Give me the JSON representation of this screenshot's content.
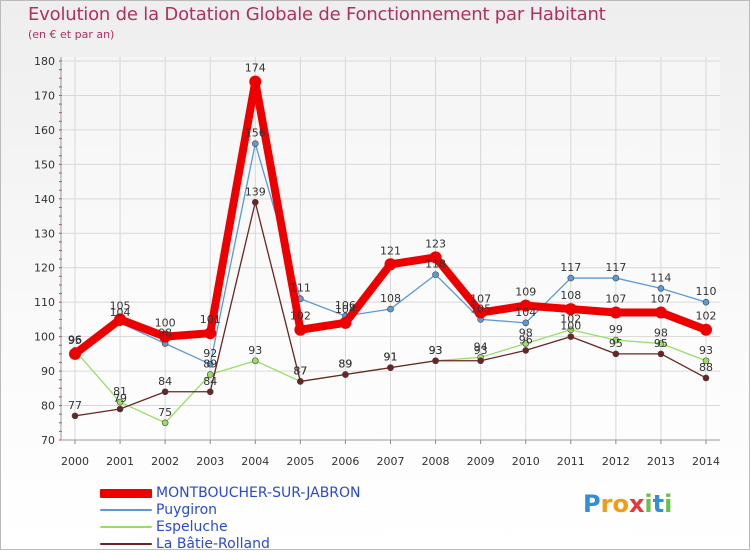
{
  "title": "Evolution de la Dotation Globale de Fonctionnement par Habitant",
  "subtitle": "(en € et par an)",
  "logo": {
    "letters": [
      {
        "ch": "P",
        "color": "#2f8fd8"
      },
      {
        "ch": "r",
        "color": "#f39c12"
      },
      {
        "ch": "o",
        "color": "#f39c12"
      },
      {
        "ch": "x",
        "color": "#e23a3a"
      },
      {
        "ch": "i",
        "color": "#6cc04a"
      },
      {
        "ch": "t",
        "color": "#2f8fd8"
      },
      {
        "ch": "i",
        "color": "#6cc04a"
      }
    ]
  },
  "chart_data": {
    "type": "line",
    "title": "Evolution de la Dotation Globale de Fonctionnement par Habitant",
    "subtitle": "(en € et par an)",
    "xlabel": "",
    "ylabel": "",
    "x": [
      "2000",
      "2001",
      "2002",
      "2003",
      "2004",
      "2005",
      "2006",
      "2007",
      "2008",
      "2009",
      "2010",
      "2011",
      "2012",
      "2013",
      "2014"
    ],
    "ylim": [
      70,
      180
    ],
    "yticks": [
      70,
      80,
      90,
      100,
      110,
      120,
      130,
      140,
      150,
      160,
      170,
      180
    ],
    "grid": true,
    "legend_position": "bottom-left",
    "series": [
      {
        "name": "MONTBOUCHER-SUR-JABRON",
        "color": "#ee0000",
        "legend_text_color": "#2a4ad6",
        "width": 8,
        "marker": 6,
        "values": [
          95,
          105,
          100,
          101,
          174,
          102,
          104,
          121,
          123,
          107,
          109,
          108,
          107,
          107,
          102
        ],
        "labels": [
          "95",
          "105",
          "100",
          "101",
          "174",
          "102",
          "104",
          "121",
          "123",
          "107",
          "109",
          "108",
          "107",
          "107",
          "102"
        ]
      },
      {
        "name": "Puygiron",
        "color": "#5b9bd5",
        "legend_text_color": "#2a4ad6",
        "width": 1.3,
        "marker": 3,
        "values": [
          96,
          104,
          98,
          92,
          156,
          111,
          106,
          108,
          118,
          105,
          104,
          117,
          117,
          114,
          110
        ],
        "labels": [
          "96",
          "104",
          "98",
          "92",
          "156",
          "111",
          "106",
          "108",
          "118",
          "105",
          "104",
          "117",
          "117",
          "114",
          "110"
        ]
      },
      {
        "name": "Espeluche",
        "color": "#99dd66",
        "legend_text_color": "#2a4ad6",
        "width": 1.3,
        "marker": 3,
        "values": [
          96,
          81,
          75,
          89,
          93,
          87,
          89,
          91,
          93,
          94,
          98,
          102,
          99,
          98,
          93
        ],
        "labels": [
          "96",
          "81",
          "75",
          "89",
          "93",
          "87",
          "89",
          "91",
          "93",
          "94",
          "98",
          "102",
          "99",
          "98",
          "93"
        ]
      },
      {
        "name": "La Bâtie-Rolland",
        "color": "#6b2323",
        "legend_text_color": "#2a4ad6",
        "width": 1.3,
        "marker": 3,
        "values": [
          77,
          79,
          84,
          84,
          139,
          87,
          89,
          91,
          93,
          93,
          96,
          100,
          95,
          95,
          88
        ],
        "labels": [
          "77",
          "79",
          "84",
          "84",
          "139",
          "87",
          "89",
          "91",
          "93",
          "93",
          "96",
          "100",
          "95",
          "95",
          "88"
        ]
      }
    ]
  }
}
